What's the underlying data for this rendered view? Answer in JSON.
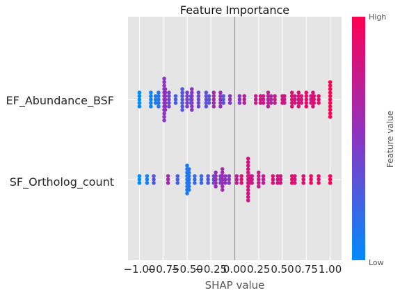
{
  "chart_data": {
    "type": "scatter",
    "title": "Feature Importance",
    "xlabel": "SHAP value",
    "xlim": [
      -1.12,
      1.12
    ],
    "xticks": [
      -1.0,
      -0.75,
      -0.5,
      -0.25,
      0.0,
      0.25,
      0.5,
      0.75,
      1.0
    ],
    "xtick_labels": [
      "−1.00",
      "−0.75",
      "−0.50",
      "−0.25",
      "0.00",
      "0.25",
      "0.50",
      "0.75",
      "1.00"
    ],
    "grid": true,
    "colorbar": {
      "label": "Feature value",
      "high": "High",
      "low": "Low",
      "colors": [
        "#008bfb",
        "#8a35c4",
        "#ff0052"
      ]
    },
    "features": [
      {
        "name": "EF_Abundance_BSF",
        "points": [
          {
            "x": -1.0,
            "spread": 2,
            "v": 0.0
          },
          {
            "x": -0.88,
            "spread": 2,
            "v": 0.06
          },
          {
            "x": -0.83,
            "spread": 1,
            "v": 0.1
          },
          {
            "x": -0.8,
            "spread": 2,
            "v": 0.14
          },
          {
            "x": -0.74,
            "spread": 6,
            "v": 0.5
          },
          {
            "x": -0.73,
            "spread": 3,
            "v": 0.55
          },
          {
            "x": -0.69,
            "spread": 2,
            "v": 0.4
          },
          {
            "x": -0.62,
            "spread": 1,
            "v": 0.25
          },
          {
            "x": -0.55,
            "spread": 3,
            "v": 0.3
          },
          {
            "x": -0.5,
            "spread": 2,
            "v": 0.45
          },
          {
            "x": -0.46,
            "spread": 1,
            "v": 0.2
          },
          {
            "x": -0.45,
            "spread": 3,
            "v": 0.5
          },
          {
            "x": -0.38,
            "spread": 2,
            "v": 0.4
          },
          {
            "x": -0.3,
            "spread": 2,
            "v": 0.35
          },
          {
            "x": -0.27,
            "spread": 1,
            "v": 0.3
          },
          {
            "x": -0.22,
            "spread": 2,
            "v": 0.6
          },
          {
            "x": -0.15,
            "spread": 2,
            "v": 0.55
          },
          {
            "x": -0.12,
            "spread": 1,
            "v": 0.3
          },
          {
            "x": -0.05,
            "spread": 1,
            "v": 0.5
          },
          {
            "x": 0.05,
            "spread": 1,
            "v": 0.5
          },
          {
            "x": 0.1,
            "spread": 1,
            "v": 0.7
          },
          {
            "x": 0.22,
            "spread": 1,
            "v": 0.75
          },
          {
            "x": 0.27,
            "spread": 1,
            "v": 0.8
          },
          {
            "x": 0.3,
            "spread": 1,
            "v": 0.75
          },
          {
            "x": 0.35,
            "spread": 2,
            "v": 0.7
          },
          {
            "x": 0.38,
            "spread": 1,
            "v": 0.65
          },
          {
            "x": 0.42,
            "spread": 1,
            "v": 0.75
          },
          {
            "x": 0.5,
            "spread": 1,
            "v": 0.8
          },
          {
            "x": 0.52,
            "spread": 1,
            "v": 0.78
          },
          {
            "x": 0.6,
            "spread": 2,
            "v": 0.85
          },
          {
            "x": 0.63,
            "spread": 1,
            "v": 0.8
          },
          {
            "x": 0.67,
            "spread": 2,
            "v": 0.85
          },
          {
            "x": 0.7,
            "spread": 1,
            "v": 0.8
          },
          {
            "x": 0.75,
            "spread": 2,
            "v": 0.9
          },
          {
            "x": 0.8,
            "spread": 1,
            "v": 0.75
          },
          {
            "x": 0.82,
            "spread": 2,
            "v": 0.85
          },
          {
            "x": 0.83,
            "spread": 1,
            "v": 0.85
          },
          {
            "x": 0.88,
            "spread": 1,
            "v": 0.9
          },
          {
            "x": 1.0,
            "spread": 5,
            "v": 1.0
          }
        ]
      },
      {
        "name": "SF_Ortholog_count",
        "points": [
          {
            "x": -1.0,
            "spread": 1,
            "v": 0.0
          },
          {
            "x": -0.92,
            "spread": 1,
            "v": 0.05
          },
          {
            "x": -0.85,
            "spread": 1,
            "v": 0.3
          },
          {
            "x": -0.7,
            "spread": 1,
            "v": 0.6
          },
          {
            "x": -0.6,
            "spread": 1,
            "v": 0.25
          },
          {
            "x": -0.5,
            "spread": 4,
            "v": 0.1
          },
          {
            "x": -0.48,
            "spread": 3,
            "v": 0.12
          },
          {
            "x": -0.42,
            "spread": 1,
            "v": 0.2
          },
          {
            "x": -0.35,
            "spread": 1,
            "v": 0.2
          },
          {
            "x": -0.28,
            "spread": 1,
            "v": 0.3
          },
          {
            "x": -0.22,
            "spread": 1,
            "v": 0.35
          },
          {
            "x": -0.2,
            "spread": 2,
            "v": 0.55
          },
          {
            "x": -0.15,
            "spread": 1,
            "v": 0.4
          },
          {
            "x": -0.13,
            "spread": 3,
            "v": 0.6
          },
          {
            "x": -0.1,
            "spread": 1,
            "v": 0.5
          },
          {
            "x": -0.06,
            "spread": 1,
            "v": 0.5
          },
          {
            "x": 0.02,
            "spread": 1,
            "v": 0.7
          },
          {
            "x": 0.07,
            "spread": 1,
            "v": 0.85
          },
          {
            "x": 0.14,
            "spread": 6,
            "v": 0.8
          },
          {
            "x": 0.16,
            "spread": 1,
            "v": 0.8
          },
          {
            "x": 0.18,
            "spread": 1,
            "v": 0.75
          },
          {
            "x": 0.25,
            "spread": 2,
            "v": 0.75
          },
          {
            "x": 0.3,
            "spread": 1,
            "v": 0.7
          },
          {
            "x": 0.4,
            "spread": 1,
            "v": 0.85
          },
          {
            "x": 0.45,
            "spread": 1,
            "v": 0.8
          },
          {
            "x": 0.48,
            "spread": 1,
            "v": 0.8
          },
          {
            "x": 0.6,
            "spread": 1,
            "v": 0.9
          },
          {
            "x": 0.63,
            "spread": 1,
            "v": 0.8
          },
          {
            "x": 0.72,
            "spread": 1,
            "v": 0.85
          },
          {
            "x": 0.8,
            "spread": 1,
            "v": 0.95
          },
          {
            "x": 0.88,
            "spread": 1,
            "v": 0.9
          },
          {
            "x": 1.0,
            "spread": 1,
            "v": 1.0
          }
        ]
      }
    ]
  }
}
